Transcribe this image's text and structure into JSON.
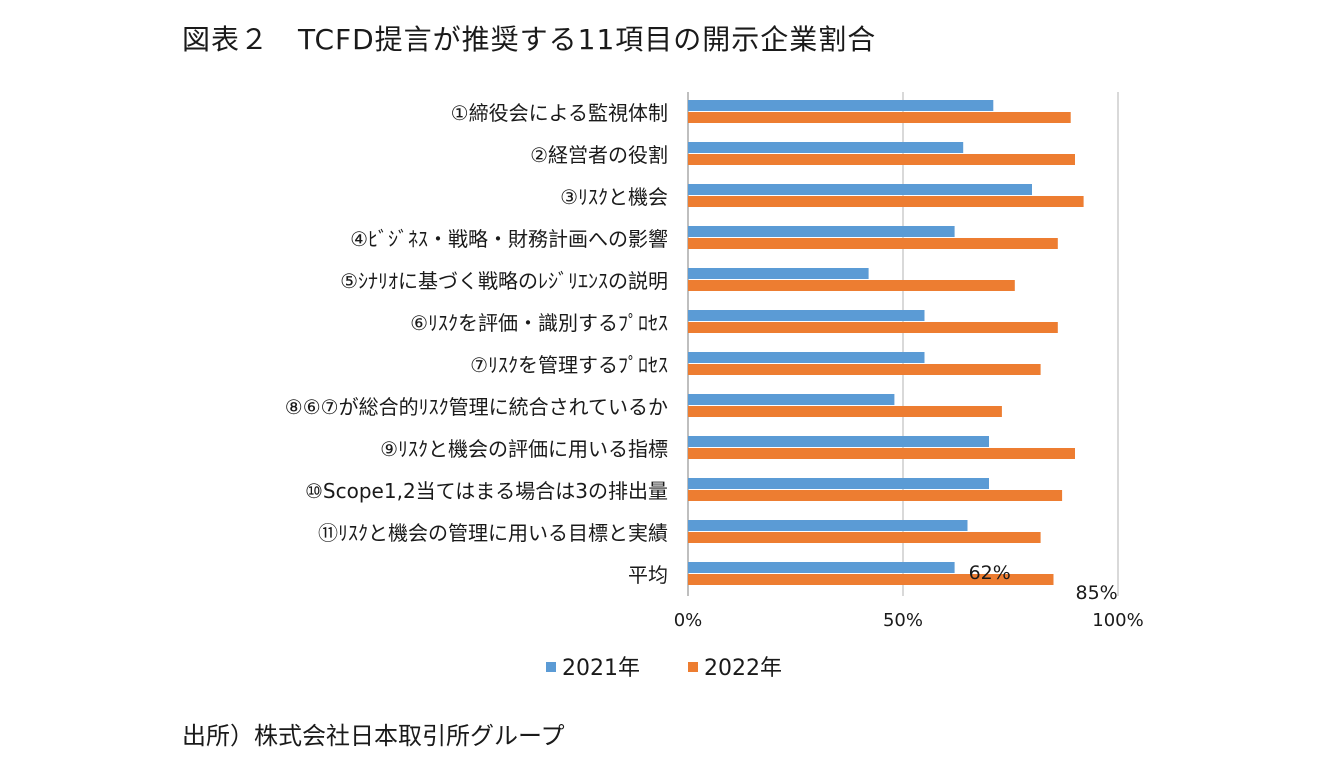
{
  "title": "図表２　TCFD提言が推奨する11項目の開示企業割合",
  "source": "出所）株式会社日本取引所グループ",
  "colors": {
    "s2021": "#5b9bd5",
    "s2022": "#ed7d31",
    "grid": "#d9d9d9"
  },
  "chart_data": {
    "type": "bar",
    "orientation": "horizontal",
    "categories": [
      "①締役会による監視体制",
      "②経営者の役割",
      "③ﾘｽｸと機会",
      "④ﾋﾞｼﾞﾈｽ・戦略・財務計画への影響",
      "⑤ｼﾅﾘｵに基づく戦略のﾚｼﾞﾘｴﾝｽの説明",
      "⑥ﾘｽｸを評価・識別するﾌﾟﾛｾｽ",
      "⑦ﾘｽｸを管理するﾌﾟﾛｾｽ",
      "⑧⑥⑦が総合的ﾘｽｸ管理に統合されているか",
      "⑨ﾘｽｸと機会の評価に用いる指標",
      "⑩Scope1,2当てはまる場合は3の排出量",
      "⑪ﾘｽｸと機会の管理に用いる目標と実績",
      "平均"
    ],
    "series": [
      {
        "name": "2021年",
        "values": [
          71,
          64,
          80,
          62,
          42,
          55,
          55,
          48,
          70,
          70,
          65,
          62
        ]
      },
      {
        "name": "2022年",
        "values": [
          89,
          90,
          92,
          86,
          76,
          86,
          82,
          73,
          90,
          87,
          82,
          85
        ]
      }
    ],
    "data_labels": [
      {
        "category": "平均",
        "series": "2021年",
        "text": "62%"
      },
      {
        "category": "平均",
        "series": "2022年",
        "text": "85%"
      }
    ],
    "xlim": [
      0,
      100
    ],
    "xticks": [
      "0%",
      "50%",
      "100%"
    ],
    "grid": true,
    "legend": "bottom-center"
  }
}
